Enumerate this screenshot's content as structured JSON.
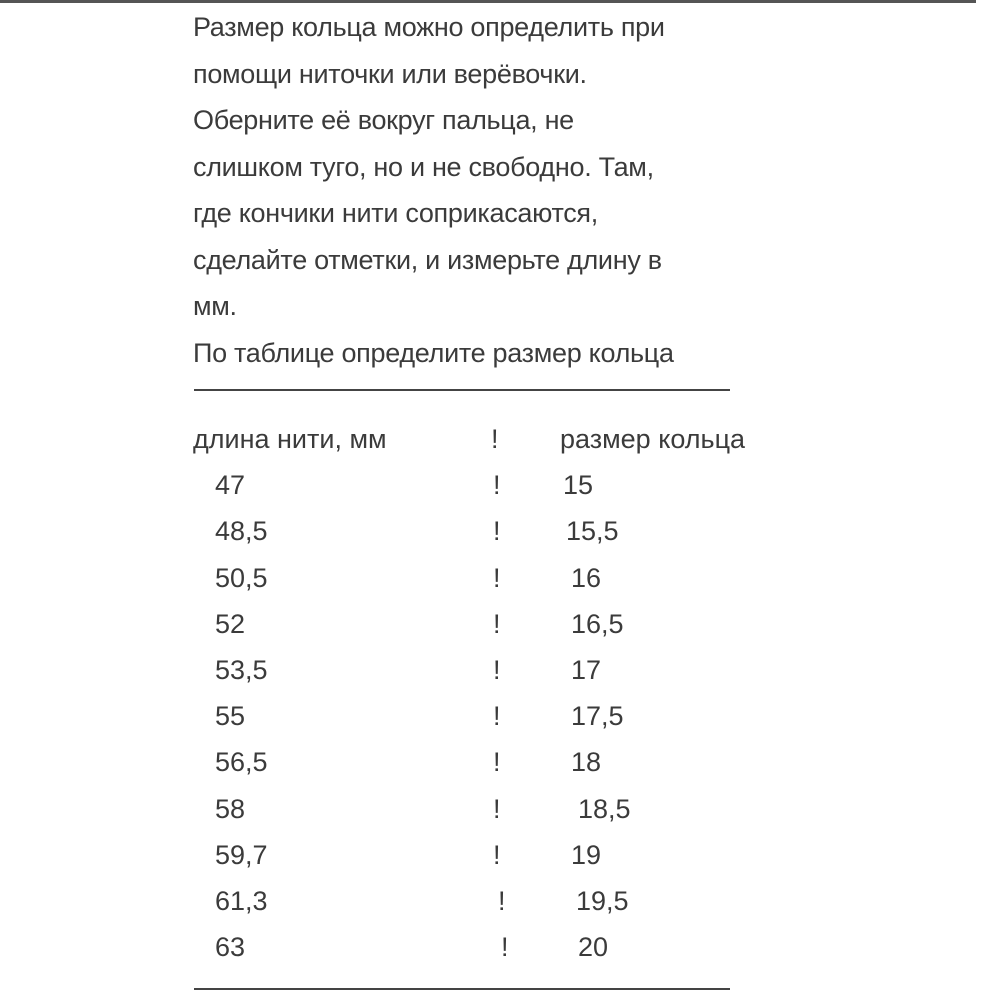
{
  "instructions": [
    "Размер кольца можно определить при",
    "помощи ниточки или верёвочки.",
    "Оберните её вокруг пальца, не",
    "слишком туго, но и не свободно. Там,",
    "где кончики нити соприкасаются,",
    "сделайте отметки, и измерьте длину в",
    "мм.",
    "По таблице определите размер кольца"
  ],
  "table": {
    "separator": "!",
    "headers": [
      "длина нити, мм",
      "размер кольца"
    ],
    "rows": [
      [
        "47",
        "15"
      ],
      [
        "48,5",
        "15,5"
      ],
      [
        "50,5",
        "16"
      ],
      [
        "52",
        "16,5"
      ],
      [
        "53,5",
        "17"
      ],
      [
        "55",
        "17,5"
      ],
      [
        "56,5",
        "18"
      ],
      [
        "58",
        "18,5"
      ],
      [
        "59,7",
        "19"
      ],
      [
        "61,3",
        "19,5"
      ],
      [
        "63",
        "20"
      ]
    ]
  }
}
